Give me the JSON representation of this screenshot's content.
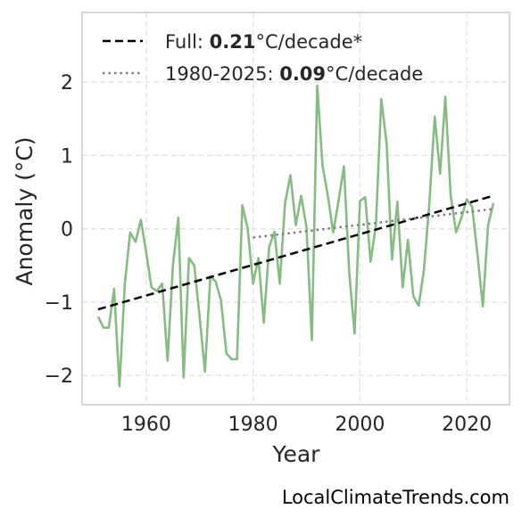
{
  "chart_data": {
    "type": "line",
    "xlabel": "Year",
    "ylabel": "Anomaly (°C)",
    "xlim": [
      1948,
      2028
    ],
    "ylim": [
      -2.4,
      2.95
    ],
    "x_ticks": [
      1960,
      1980,
      2000,
      2020
    ],
    "y_ticks": [
      -2,
      -1,
      0,
      1,
      2
    ],
    "y_tick_labels": [
      "−2",
      "−1",
      "0",
      "1",
      "2"
    ],
    "grid": true,
    "legend_position": "top-left",
    "x": [
      1951,
      1952,
      1953,
      1954,
      1955,
      1956,
      1957,
      1958,
      1959,
      1960,
      1961,
      1962,
      1963,
      1964,
      1965,
      1966,
      1967,
      1968,
      1969,
      1970,
      1971,
      1972,
      1973,
      1974,
      1975,
      1976,
      1977,
      1978,
      1979,
      1980,
      1981,
      1982,
      1983,
      1984,
      1985,
      1986,
      1987,
      1988,
      1989,
      1990,
      1991,
      1992,
      1993,
      1994,
      1995,
      1996,
      1997,
      1998,
      1999,
      2000,
      2001,
      2002,
      2003,
      2004,
      2005,
      2006,
      2007,
      2008,
      2009,
      2010,
      2011,
      2012,
      2013,
      2014,
      2015,
      2016,
      2017,
      2018,
      2019,
      2020,
      2021,
      2022,
      2023,
      2024,
      2025
    ],
    "series": [
      {
        "color": "#87bb84",
        "values": [
          -1.2,
          -1.35,
          -1.35,
          -0.82,
          -2.15,
          -0.75,
          -0.05,
          -0.18,
          0.12,
          -0.32,
          -0.8,
          -0.85,
          -0.75,
          -1.8,
          -0.5,
          0.15,
          -2.03,
          -0.4,
          -0.5,
          -1.2,
          -1.95,
          -0.65,
          -0.72,
          -0.98,
          -1.7,
          -1.78,
          -1.78,
          0.32,
          0.0,
          -0.75,
          -0.4,
          -1.28,
          -0.25,
          -0.04,
          -0.75,
          0.35,
          0.73,
          0.05,
          0.45,
          0.02,
          -1.52,
          1.95,
          0.87,
          0.45,
          -0.05,
          0.38,
          0.85,
          -0.6,
          -1.43,
          0.38,
          0.43,
          -0.45,
          0.05,
          1.77,
          1.16,
          -0.42,
          0.37,
          -0.8,
          -0.15,
          -0.92,
          -1.05,
          -0.55,
          0.35,
          1.53,
          0.75,
          1.8,
          0.45,
          -0.05,
          0.15,
          0.4,
          0.3,
          -0.35,
          -1.06,
          0.05,
          0.35
        ]
      }
    ],
    "trend_lines": [
      {
        "legend_label_prefix": "Full: ",
        "legend_value": "0.21",
        "legend_suffix": "°C/decade*",
        "x": [
          1951,
          2025
        ],
        "y": [
          -1.1,
          0.45
        ],
        "color": "#000000",
        "style": "dashed"
      },
      {
        "legend_label_prefix": "1980-2025: ",
        "legend_value": "0.09",
        "legend_suffix": "°C/decade",
        "x": [
          1980,
          2025
        ],
        "y": [
          -0.12,
          0.27
        ],
        "color": "#808080",
        "style": "dotted"
      }
    ]
  },
  "watermark": "LocalClimateTrends.com"
}
